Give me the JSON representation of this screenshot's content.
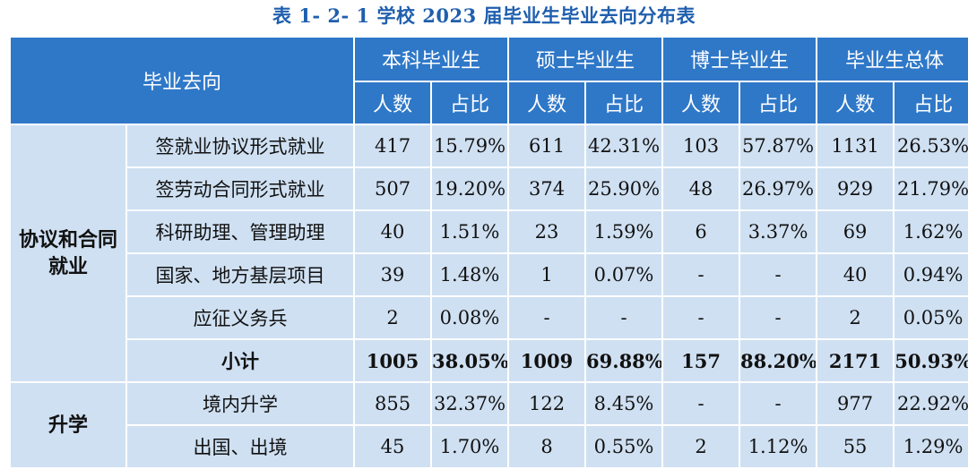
{
  "title": "表 1- 2- 1  学校 2023 届毕业生毕业去向分布表",
  "header": {
    "corner": "毕业去向",
    "groups": [
      "本科毕业生",
      "硕士毕业生",
      "博士毕业生",
      "毕业生总体"
    ],
    "sub": [
      "人数",
      "占比"
    ]
  },
  "sections": [
    {
      "name": "协议和合同就业",
      "rows": [
        {
          "label": "签就业协议形式就业",
          "cells": [
            "417",
            "15.79%",
            "611",
            "42.31%",
            "103",
            "57.87%",
            "1131",
            "26.53%"
          ]
        },
        {
          "label": "签劳动合同形式就业",
          "cells": [
            "507",
            "19.20%",
            "374",
            "25.90%",
            "48",
            "26.97%",
            "929",
            "21.79%"
          ]
        },
        {
          "label": "科研助理、管理助理",
          "cells": [
            "40",
            "1.51%",
            "23",
            "1.59%",
            "6",
            "3.37%",
            "69",
            "1.62%"
          ]
        },
        {
          "label": "国家、地方基层项目",
          "cells": [
            "39",
            "1.48%",
            "1",
            "0.07%",
            "-",
            "-",
            "40",
            "0.94%"
          ]
        },
        {
          "label": "应征义务兵",
          "cells": [
            "2",
            "0.08%",
            "-",
            "-",
            "-",
            "-",
            "2",
            "0.05%"
          ]
        },
        {
          "label": "小计",
          "cells": [
            "1005",
            "38.05%",
            "1009",
            "69.88%",
            "157",
            "88.20%",
            "2171",
            "50.93%"
          ]
        }
      ]
    },
    {
      "name": "升学",
      "rows": [
        {
          "label": "境内升学",
          "cells": [
            "855",
            "32.37%",
            "122",
            "8.45%",
            "-",
            "-",
            "977",
            "22.92%"
          ]
        },
        {
          "label": "出国、出境",
          "cells": [
            "45",
            "1.70%",
            "8",
            "0.55%",
            "2",
            "1.12%",
            "55",
            "1.29%"
          ]
        }
      ]
    }
  ]
}
